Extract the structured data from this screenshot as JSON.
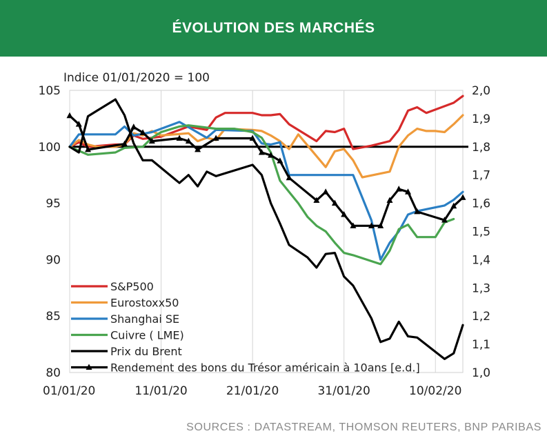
{
  "header": {
    "title": "ÉVOLUTION DES MARCHÉS"
  },
  "sources": "SOURCES : DATASTREAM, THOMSON REUTERS, BNP PARIBAS",
  "colors": {
    "header_bg": "#1f8a4c",
    "sp500": "#d62a2a",
    "eurostoxx": "#ef9a3a",
    "shanghai": "#2a7fc4",
    "cuivre": "#4aa54f",
    "brent": "#000000",
    "treasury": "#000000"
  },
  "chart_data": {
    "type": "line",
    "index_note": "Indice 01/01/2020 = 100",
    "x_tick_labels": [
      "01/01/20",
      "11/01/20",
      "21/01/20",
      "31/01/20",
      "10/02/20"
    ],
    "x_ticks_day": [
      0,
      10,
      20,
      30,
      40
    ],
    "xlim": [
      0,
      43
    ],
    "y_left": {
      "lim": [
        80,
        105
      ],
      "ticks": [
        "80",
        "85",
        "90",
        "95",
        "100",
        "105"
      ]
    },
    "y_right": {
      "lim": [
        1.0,
        2.0
      ],
      "ticks": [
        "1,0",
        "1,1",
        "1,2",
        "1,3",
        "1,4",
        "1,5",
        "1,6",
        "1,7",
        "1,8",
        "1,9",
        "2,0"
      ]
    },
    "reference_line": 100,
    "series": [
      {
        "name": "S&P500",
        "axis": "left",
        "marker": false,
        "points": [
          [
            0,
            100
          ],
          [
            1,
            100.4
          ],
          [
            2,
            100
          ],
          [
            5,
            100.2
          ],
          [
            6,
            100.2
          ],
          [
            7,
            101
          ],
          [
            8,
            100.7
          ],
          [
            10,
            100.9
          ],
          [
            13,
            101.8
          ],
          [
            15,
            101.5
          ],
          [
            16,
            102.6
          ],
          [
            17,
            103
          ],
          [
            20,
            103
          ],
          [
            21,
            102.8
          ],
          [
            22,
            102.8
          ],
          [
            23,
            102.9
          ],
          [
            24,
            102
          ],
          [
            27,
            100.5
          ],
          [
            28,
            101.4
          ],
          [
            29,
            101.3
          ],
          [
            30,
            101.6
          ],
          [
            31,
            99.8
          ],
          [
            33,
            100.1
          ],
          [
            35,
            100.5
          ],
          [
            36,
            101.5
          ],
          [
            37,
            103.2
          ],
          [
            38,
            103.5
          ],
          [
            39,
            103.0
          ],
          [
            42,
            103.9
          ],
          [
            43,
            104.5
          ]
        ]
      },
      {
        "name": "Eurostoxx50",
        "axis": "left",
        "marker": false,
        "points": [
          [
            0,
            100
          ],
          [
            1,
            100.6
          ],
          [
            2,
            100.2
          ],
          [
            3,
            100
          ],
          [
            5,
            100
          ],
          [
            6,
            100.2
          ],
          [
            7,
            101.2
          ],
          [
            8,
            101
          ],
          [
            9,
            101.4
          ],
          [
            10,
            101
          ],
          [
            13,
            101.2
          ],
          [
            14,
            100.5
          ],
          [
            15,
            100.8
          ],
          [
            16,
            100.6
          ],
          [
            17,
            101.6
          ],
          [
            20,
            101.5
          ],
          [
            21,
            101.4
          ],
          [
            22,
            101
          ],
          [
            23,
            100.5
          ],
          [
            24,
            99.8
          ],
          [
            25,
            101.1
          ],
          [
            28,
            98.2
          ],
          [
            29,
            99.6
          ],
          [
            30,
            99.8
          ],
          [
            31,
            98.8
          ],
          [
            32,
            97.3
          ],
          [
            35,
            97.8
          ],
          [
            36,
            100
          ],
          [
            37,
            101
          ],
          [
            38,
            101.6
          ],
          [
            39,
            101.4
          ],
          [
            40,
            101.4
          ],
          [
            41,
            101.3
          ],
          [
            42,
            102
          ],
          [
            43,
            102.8
          ]
        ]
      },
      {
        "name": "Shanghai SE",
        "axis": "left",
        "marker": false,
        "points": [
          [
            0,
            100
          ],
          [
            1,
            101.1
          ],
          [
            5,
            101.1
          ],
          [
            6,
            101.8
          ],
          [
            7,
            101
          ],
          [
            9,
            101.3
          ],
          [
            10,
            101.6
          ],
          [
            12,
            102.2
          ],
          [
            15,
            100.8
          ],
          [
            16,
            101.5
          ],
          [
            20,
            101.4
          ],
          [
            21,
            100.3
          ],
          [
            22,
            100.2
          ],
          [
            23,
            100.4
          ],
          [
            24,
            97.5
          ],
          [
            31,
            97.5
          ],
          [
            32,
            95.5
          ],
          [
            33,
            93.5
          ],
          [
            34,
            90
          ],
          [
            35,
            91.5
          ],
          [
            36,
            92.5
          ],
          [
            37,
            94
          ],
          [
            38,
            94.3
          ],
          [
            41,
            94.8
          ],
          [
            42,
            95.3
          ],
          [
            43,
            96
          ]
        ]
      },
      {
        "name": "Cuivre ( LME)",
        "axis": "left",
        "marker": false,
        "points": [
          [
            0,
            100
          ],
          [
            2,
            99.3
          ],
          [
            5,
            99.5
          ],
          [
            6,
            99.9
          ],
          [
            8,
            100
          ],
          [
            9,
            100.8
          ],
          [
            10,
            101.3
          ],
          [
            12,
            101.8
          ],
          [
            13,
            101.9
          ],
          [
            15,
            101.7
          ],
          [
            16,
            101.6
          ],
          [
            18,
            101.6
          ],
          [
            20,
            101.3
          ],
          [
            21,
            100.8
          ],
          [
            22,
            99.5
          ],
          [
            23,
            97
          ],
          [
            24,
            96
          ],
          [
            25,
            95
          ],
          [
            26,
            93.8
          ],
          [
            27,
            93
          ],
          [
            28,
            92.5
          ],
          [
            29,
            91.5
          ],
          [
            30,
            90.6
          ],
          [
            31,
            90.4
          ],
          [
            34,
            89.6
          ],
          [
            35,
            90.8
          ],
          [
            36,
            92.7
          ],
          [
            37,
            93.1
          ],
          [
            38,
            92
          ],
          [
            40,
            92
          ],
          [
            41,
            93.3
          ],
          [
            42,
            93.6
          ]
        ]
      },
      {
        "name": "Prix du Brent",
        "axis": "left",
        "marker": false,
        "points": [
          [
            0,
            100
          ],
          [
            1,
            99.5
          ],
          [
            2,
            102.7
          ],
          [
            3,
            103.2
          ],
          [
            5,
            104.2
          ],
          [
            6,
            102.8
          ],
          [
            7,
            100.3
          ],
          [
            8,
            98.8
          ],
          [
            9,
            98.8
          ],
          [
            12,
            96.8
          ],
          [
            13,
            97.5
          ],
          [
            14,
            96.5
          ],
          [
            15,
            97.8
          ],
          [
            16,
            97.4
          ],
          [
            20,
            98.4
          ],
          [
            21,
            97.5
          ],
          [
            22,
            95
          ],
          [
            23,
            93.2
          ],
          [
            24,
            91.3
          ],
          [
            26,
            90.2
          ],
          [
            27,
            89.3
          ],
          [
            28,
            90.5
          ],
          [
            29,
            90.6
          ],
          [
            30,
            88.5
          ],
          [
            31,
            87.7
          ],
          [
            33,
            84.8
          ],
          [
            34,
            82.7
          ],
          [
            35,
            83
          ],
          [
            36,
            84.5
          ],
          [
            37,
            83.2
          ],
          [
            38,
            83.1
          ],
          [
            41,
            81.2
          ],
          [
            42,
            81.7
          ],
          [
            43,
            84.2
          ]
        ]
      },
      {
        "name": "Rendement des bons du Trésor américain à 10ans [e.d.]",
        "axis": "right",
        "marker": true,
        "points": [
          [
            0,
            1.91
          ],
          [
            1,
            1.88
          ],
          [
            2,
            1.79
          ],
          [
            6,
            1.81
          ],
          [
            7,
            1.87
          ],
          [
            8,
            1.85
          ],
          [
            9,
            1.82
          ],
          [
            12,
            1.83
          ],
          [
            13,
            1.82
          ],
          [
            14,
            1.79
          ],
          [
            16,
            1.83
          ],
          [
            20,
            1.83
          ],
          [
            21,
            1.78
          ],
          [
            22,
            1.77
          ],
          [
            23,
            1.75
          ],
          [
            24,
            1.69
          ],
          [
            27,
            1.61
          ],
          [
            28,
            1.64
          ],
          [
            29,
            1.6
          ],
          [
            30,
            1.56
          ],
          [
            31,
            1.52
          ],
          [
            33,
            1.52
          ],
          [
            34,
            1.52
          ],
          [
            35,
            1.61
          ],
          [
            36,
            1.65
          ],
          [
            37,
            1.64
          ],
          [
            38,
            1.57
          ],
          [
            41,
            1.54
          ],
          [
            42,
            1.59
          ],
          [
            43,
            1.62
          ]
        ]
      }
    ]
  }
}
